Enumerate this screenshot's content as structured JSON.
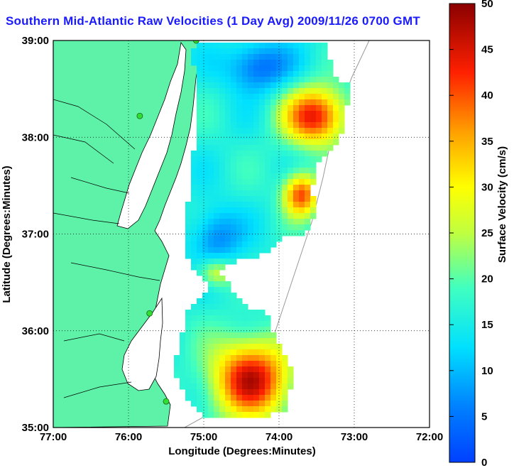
{
  "title": "Southern Mid-Atlantic Raw Velocities (1 Day Avg) 2009/11/26 0700 GMT",
  "xlabel": "Longitude (Degrees:Minutes)",
  "ylabel": "Latitude (Degrees:Minutes)",
  "xticks": [
    "77:00",
    "76:00",
    "75:00",
    "74:00",
    "73:00",
    "72:00"
  ],
  "yticks": [
    "39:00",
    "38:00",
    "37:00",
    "36:00",
    "35:00"
  ],
  "colorbar": {
    "label": "Surface Velocity (cm/s)",
    "ticks": [
      "0",
      "5",
      "10",
      "15",
      "20",
      "25",
      "30",
      "35",
      "40",
      "45",
      "50"
    ],
    "min": 0,
    "max": 50
  },
  "colors": {
    "land": "#5ef2a8",
    "title": "#1a1aff",
    "station": "#33dd33"
  },
  "stations": [
    {
      "lon": -75.1,
      "lat": 39.0
    },
    {
      "lon": -75.85,
      "lat": 38.22
    },
    {
      "lon": -75.72,
      "lat": 36.18
    },
    {
      "lon": -75.5,
      "lat": 35.27
    }
  ]
}
